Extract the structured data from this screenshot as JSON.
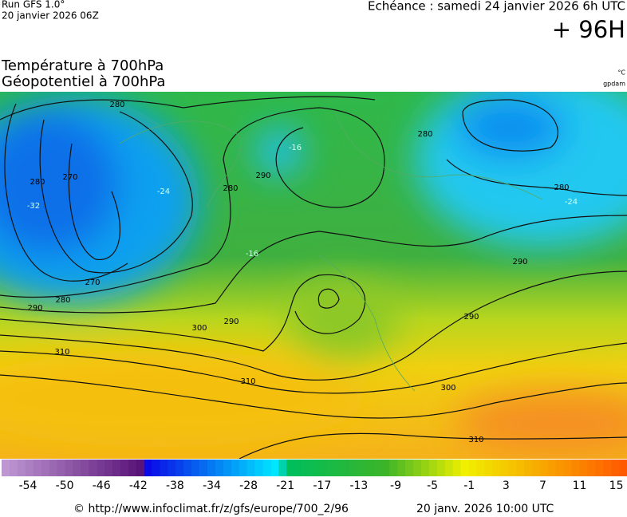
{
  "header": {
    "run": "Run GFS 1.0°",
    "run_date": "20 janvier 2026 06Z",
    "forecast": "Echéance : samedi 24 janvier 2026 6h UTC",
    "lead": "+ 96H"
  },
  "titles": {
    "temperature": "Température à 700hPa",
    "geopotential": "Géopotentiel à 700hPa",
    "temperature_unit": "°C",
    "geopotential_unit": "gpdam"
  },
  "map": {
    "contour_labels": [
      "280",
      "280",
      "270",
      "280",
      "290",
      "280",
      "280",
      "290",
      "280",
      "270",
      "290",
      "290",
      "300",
      "310",
      "290",
      "300",
      "310",
      "310"
    ],
    "temperature_labels": [
      "-32",
      "-24",
      "-16",
      "-16",
      "-24"
    ]
  },
  "colorbar": {
    "ticks": [
      -54,
      -50,
      -46,
      -42,
      -38,
      -34,
      -28,
      -21,
      -17,
      -13,
      -9,
      -5,
      -1,
      3,
      7,
      11,
      15
    ]
  },
  "footer": {
    "source": "© http://www.infoclimat.fr/z/gfs/europe/700_2/96",
    "issued": "20 janv. 2026 10:00 UTC"
  }
}
